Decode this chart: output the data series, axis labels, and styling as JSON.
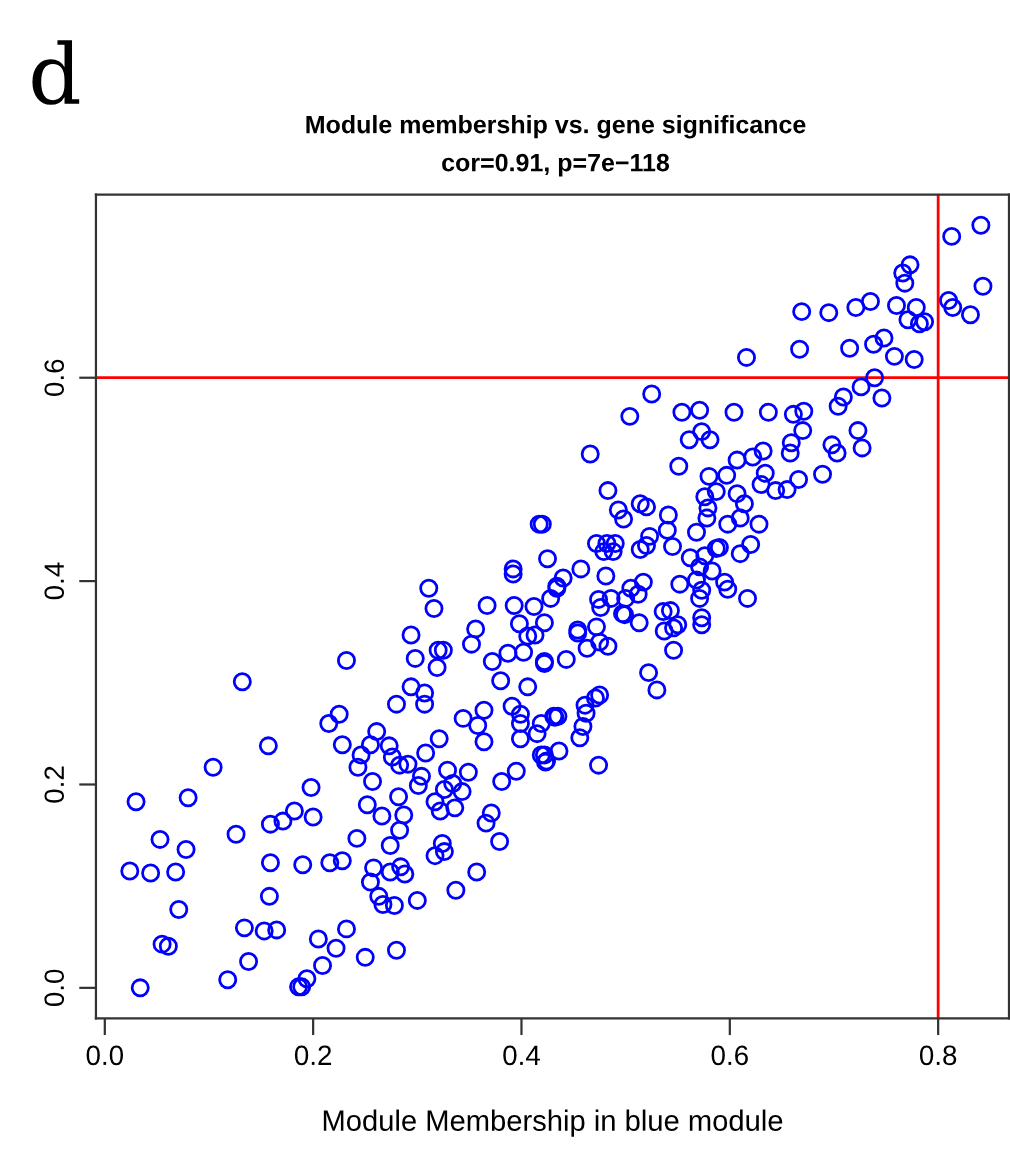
{
  "chart_data": {
    "type": "scatter",
    "title": "Module membership vs. gene significance",
    "subtitle": "cor=0.91, p=7e−118",
    "xlabel": "Module Membership in blue module",
    "annotations": [
      "d"
    ],
    "marker": "circle",
    "xlim": [
      -0.0085,
      0.868
    ],
    "ylim": [
      -0.03,
      0.78
    ],
    "xticks": [
      {
        "value": 0.0,
        "label": "0.0"
      },
      {
        "value": 0.2,
        "label": "0.2"
      },
      {
        "value": 0.4,
        "label": "0.4"
      },
      {
        "value": 0.6,
        "label": "0.6"
      },
      {
        "value": 0.8,
        "label": "0.8"
      }
    ],
    "yticks": [
      {
        "value": 0.0,
        "label": "0.0"
      },
      {
        "value": 0.2,
        "label": "0.2"
      },
      {
        "value": 0.4,
        "label": "0.4"
      },
      {
        "value": 0.6,
        "label": "0.6"
      }
    ],
    "ref_lines": [
      {
        "axis": "x",
        "value": 0.8,
        "color": "#ff0000"
      },
      {
        "axis": "y",
        "value": 0.6,
        "color": "#ff0000"
      }
    ],
    "series": [
      {
        "color": "#0000ff",
        "x": [
          0.034,
          0.03,
          0.024,
          0.044,
          0.053,
          0.068,
          0.071,
          0.055,
          0.061,
          0.078,
          0.08,
          0.104,
          0.132,
          0.126,
          0.118,
          0.138,
          0.134,
          0.153,
          0.165,
          0.158,
          0.159,
          0.159,
          0.171,
          0.182,
          0.157,
          0.198,
          0.2,
          0.19,
          0.186,
          0.189,
          0.194,
          0.205,
          0.209,
          0.222,
          0.232,
          0.25,
          0.216,
          0.228,
          0.242,
          0.232,
          0.215,
          0.225,
          0.228,
          0.243,
          0.246,
          0.255,
          0.261,
          0.257,
          0.252,
          0.266,
          0.258,
          0.255,
          0.263,
          0.267,
          0.278,
          0.274,
          0.284,
          0.288,
          0.274,
          0.28,
          0.3,
          0.283,
          0.287,
          0.282,
          0.273,
          0.276,
          0.283,
          0.291,
          0.28,
          0.294,
          0.307,
          0.307,
          0.294,
          0.298,
          0.316,
          0.319,
          0.32,
          0.325,
          0.304,
          0.301,
          0.308,
          0.321,
          0.329,
          0.334,
          0.326,
          0.343,
          0.317,
          0.322,
          0.336,
          0.324,
          0.326,
          0.317,
          0.337,
          0.357,
          0.366,
          0.371,
          0.379,
          0.381,
          0.395,
          0.349,
          0.344,
          0.358,
          0.364,
          0.364,
          0.38,
          0.372,
          0.352,
          0.356,
          0.391,
          0.399,
          0.399,
          0.399,
          0.415,
          0.406,
          0.387,
          0.402,
          0.422,
          0.367,
          0.393,
          0.412,
          0.398,
          0.406,
          0.413,
          0.419,
          0.424,
          0.432,
          0.841,
          0.813,
          0.843,
          0.81,
          0.814,
          0.831,
          0.773,
          0.766,
          0.768,
          0.779,
          0.771,
          0.782,
          0.787,
          0.76,
          0.735,
          0.721,
          0.695,
          0.669,
          0.748,
          0.738,
          0.715,
          0.758,
          0.777,
          0.667,
          0.616,
          0.739,
          0.726,
          0.746,
          0.709,
          0.704,
          0.723,
          0.727,
          0.698,
          0.703,
          0.689,
          0.671,
          0.661,
          0.637,
          0.604,
          0.571,
          0.554,
          0.525,
          0.504,
          0.466,
          0.67,
          0.659,
          0.658,
          0.666,
          0.655,
          0.644,
          0.632,
          0.622,
          0.607,
          0.597,
          0.58,
          0.634,
          0.63,
          0.561,
          0.573,
          0.581,
          0.551,
          0.607,
          0.614,
          0.61,
          0.598,
          0.628,
          0.576,
          0.579,
          0.587,
          0.578,
          0.568,
          0.62,
          0.61,
          0.59,
          0.562,
          0.576,
          0.587,
          0.571,
          0.583,
          0.595,
          0.598,
          0.617,
          0.568,
          0.573,
          0.571,
          0.552,
          0.541,
          0.54,
          0.545,
          0.523,
          0.52,
          0.514,
          0.514,
          0.52,
          0.493,
          0.498,
          0.483,
          0.472,
          0.482,
          0.49,
          0.479,
          0.488,
          0.457,
          0.44,
          0.434,
          0.425,
          0.42,
          0.481,
          0.517,
          0.505,
          0.512,
          0.474,
          0.486,
          0.5,
          0.497,
          0.536,
          0.543,
          0.573,
          0.573,
          0.537,
          0.546,
          0.55,
          0.546,
          0.522,
          0.53,
          0.499,
          0.513,
          0.472,
          0.454,
          0.454,
          0.463,
          0.475,
          0.483,
          0.476,
          0.422,
          0.422,
          0.443,
          0.461,
          0.471,
          0.475,
          0.462,
          0.459,
          0.456,
          0.431,
          0.435,
          0.419,
          0.436,
          0.422,
          0.423,
          0.474,
          0.417,
          0.392,
          0.392,
          0.311,
          0.428,
          0.434
        ],
        "values": [
          0.0,
          0.183,
          0.115,
          0.113,
          0.146,
          0.114,
          0.077,
          0.043,
          0.041,
          0.136,
          0.187,
          0.217,
          0.301,
          0.151,
          0.008,
          0.026,
          0.059,
          0.056,
          0.057,
          0.09,
          0.123,
          0.161,
          0.164,
          0.174,
          0.238,
          0.197,
          0.168,
          0.121,
          0.001,
          0.001,
          0.009,
          0.048,
          0.022,
          0.039,
          0.058,
          0.03,
          0.123,
          0.125,
          0.147,
          0.322,
          0.26,
          0.269,
          0.239,
          0.217,
          0.229,
          0.239,
          0.252,
          0.203,
          0.18,
          0.169,
          0.118,
          0.104,
          0.09,
          0.082,
          0.081,
          0.114,
          0.119,
          0.112,
          0.14,
          0.037,
          0.086,
          0.155,
          0.17,
          0.188,
          0.238,
          0.227,
          0.219,
          0.22,
          0.279,
          0.296,
          0.29,
          0.279,
          0.347,
          0.324,
          0.373,
          0.315,
          0.332,
          0.332,
          0.208,
          0.199,
          0.231,
          0.245,
          0.214,
          0.201,
          0.195,
          0.193,
          0.183,
          0.174,
          0.177,
          0.142,
          0.134,
          0.13,
          0.096,
          0.114,
          0.162,
          0.172,
          0.144,
          0.203,
          0.213,
          0.212,
          0.265,
          0.258,
          0.242,
          0.273,
          0.302,
          0.321,
          0.338,
          0.353,
          0.277,
          0.269,
          0.26,
          0.245,
          0.25,
          0.296,
          0.329,
          0.33,
          0.319,
          0.376,
          0.376,
          0.375,
          0.358,
          0.346,
          0.347,
          0.229,
          0.223,
          0.266,
          0.75,
          0.739,
          0.69,
          0.676,
          0.669,
          0.662,
          0.711,
          0.703,
          0.693,
          0.669,
          0.657,
          0.653,
          0.655,
          0.671,
          0.675,
          0.669,
          0.664,
          0.665,
          0.639,
          0.633,
          0.629,
          0.621,
          0.618,
          0.628,
          0.62,
          0.6,
          0.591,
          0.58,
          0.581,
          0.572,
          0.548,
          0.531,
          0.534,
          0.526,
          0.505,
          0.567,
          0.564,
          0.566,
          0.566,
          0.568,
          0.566,
          0.584,
          0.562,
          0.525,
          0.548,
          0.536,
          0.526,
          0.5,
          0.49,
          0.489,
          0.528,
          0.522,
          0.519,
          0.504,
          0.503,
          0.506,
          0.495,
          0.539,
          0.547,
          0.539,
          0.513,
          0.486,
          0.476,
          0.462,
          0.456,
          0.456,
          0.483,
          0.472,
          0.488,
          0.462,
          0.448,
          0.436,
          0.427,
          0.433,
          0.423,
          0.425,
          0.432,
          0.414,
          0.41,
          0.399,
          0.392,
          0.383,
          0.401,
          0.391,
          0.383,
          0.397,
          0.465,
          0.45,
          0.434,
          0.444,
          0.435,
          0.431,
          0.476,
          0.473,
          0.47,
          0.461,
          0.489,
          0.437,
          0.437,
          0.437,
          0.429,
          0.429,
          0.412,
          0.403,
          0.393,
          0.422,
          0.456,
          0.405,
          0.399,
          0.393,
          0.387,
          0.382,
          0.383,
          0.383,
          0.368,
          0.37,
          0.371,
          0.364,
          0.357,
          0.351,
          0.354,
          0.357,
          0.332,
          0.31,
          0.293,
          0.367,
          0.359,
          0.355,
          0.352,
          0.349,
          0.334,
          0.34,
          0.336,
          0.374,
          0.359,
          0.321,
          0.323,
          0.278,
          0.285,
          0.288,
          0.27,
          0.257,
          0.246,
          0.267,
          0.267,
          0.26,
          0.233,
          0.229,
          0.222,
          0.219,
          0.456,
          0.412,
          0.407,
          0.393,
          0.383,
          0.395
        ]
      }
    ]
  }
}
